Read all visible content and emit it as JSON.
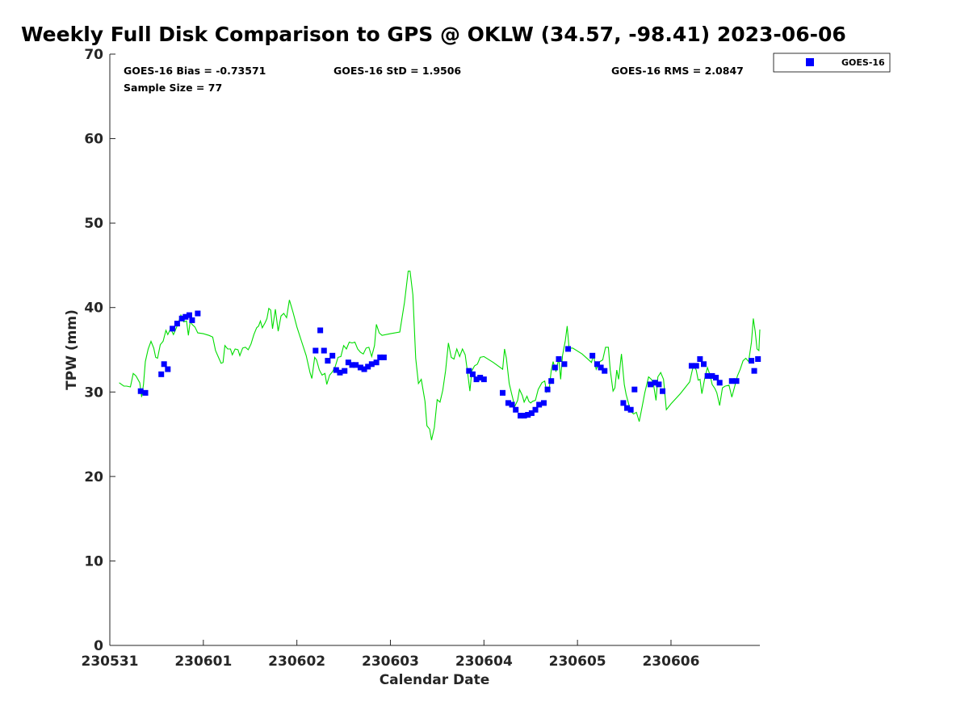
{
  "chart_data": {
    "type": "scatter",
    "title": "Weekly Full Disk Comparison to GPS @ OKLW (34.57, -98.41) 2023-06-06",
    "xlabel": "Calendar Date",
    "ylabel": "TPW (mm)",
    "xlim": [
      0,
      6.95
    ],
    "ylim": [
      0,
      70
    ],
    "x_tick_labels": [
      "230531",
      "230601",
      "230602",
      "230603",
      "230604",
      "230605",
      "230606"
    ],
    "x_tick_values": [
      0,
      1,
      2,
      3,
      4,
      5,
      6
    ],
    "y_ticks": [
      0,
      10,
      20,
      30,
      40,
      50,
      60,
      70
    ],
    "x_unit_note": "x values in days since 230531 00Z",
    "grid": false,
    "legend_placement": "outside top-right",
    "annotations": {
      "bias": "GOES-16 Bias = -0.73571",
      "std": "GOES-16 StD = 1.9506",
      "rms": "GOES-16 RMS = 2.0847",
      "sample": "Sample Size = 77"
    },
    "series": [
      {
        "name": "GOES-16",
        "kind": "scatter",
        "marker": "square",
        "color": "#0000ff",
        "points": [
          [
            0.33,
            30.1
          ],
          [
            0.38,
            29.9
          ],
          [
            0.55,
            32.1
          ],
          [
            0.58,
            33.3
          ],
          [
            0.62,
            32.7
          ],
          [
            0.67,
            37.5
          ],
          [
            0.72,
            38.1
          ],
          [
            0.77,
            38.7
          ],
          [
            0.81,
            38.9
          ],
          [
            0.85,
            39.1
          ],
          [
            0.88,
            38.5
          ],
          [
            0.94,
            39.3
          ],
          [
            2.2,
            34.9
          ],
          [
            2.25,
            37.3
          ],
          [
            2.29,
            34.9
          ],
          [
            2.33,
            33.7
          ],
          [
            2.38,
            34.3
          ],
          [
            2.42,
            32.6
          ],
          [
            2.46,
            32.3
          ],
          [
            2.51,
            32.5
          ],
          [
            2.55,
            33.5
          ],
          [
            2.59,
            33.2
          ],
          [
            2.63,
            33.2
          ],
          [
            2.68,
            32.9
          ],
          [
            2.72,
            32.7
          ],
          [
            2.76,
            33.0
          ],
          [
            2.8,
            33.3
          ],
          [
            2.85,
            33.5
          ],
          [
            2.89,
            34.1
          ],
          [
            2.93,
            34.1
          ],
          [
            3.84,
            32.5
          ],
          [
            3.88,
            32.1
          ],
          [
            3.92,
            31.5
          ],
          [
            3.96,
            31.7
          ],
          [
            4.0,
            31.5
          ],
          [
            4.2,
            29.9
          ],
          [
            4.26,
            28.7
          ],
          [
            4.3,
            28.5
          ],
          [
            4.34,
            27.9
          ],
          [
            4.39,
            27.2
          ],
          [
            4.43,
            27.2
          ],
          [
            4.47,
            27.3
          ],
          [
            4.51,
            27.5
          ],
          [
            4.55,
            27.9
          ],
          [
            4.59,
            28.5
          ],
          [
            4.64,
            28.7
          ],
          [
            4.68,
            30.3
          ],
          [
            4.72,
            31.3
          ],
          [
            4.76,
            32.9
          ],
          [
            4.8,
            33.9
          ],
          [
            4.86,
            33.3
          ],
          [
            4.9,
            35.1
          ],
          [
            5.16,
            34.3
          ],
          [
            5.21,
            33.3
          ],
          [
            5.25,
            32.9
          ],
          [
            5.29,
            32.5
          ],
          [
            5.49,
            28.7
          ],
          [
            5.53,
            28.1
          ],
          [
            5.57,
            27.9
          ],
          [
            5.61,
            30.3
          ],
          [
            5.78,
            30.9
          ],
          [
            5.83,
            31.1
          ],
          [
            5.87,
            30.9
          ],
          [
            5.91,
            30.1
          ],
          [
            6.22,
            33.1
          ],
          [
            6.27,
            33.1
          ],
          [
            6.31,
            33.9
          ],
          [
            6.35,
            33.3
          ],
          [
            6.39,
            31.9
          ],
          [
            6.44,
            31.9
          ],
          [
            6.48,
            31.7
          ],
          [
            6.52,
            31.1
          ],
          [
            6.65,
            31.3
          ],
          [
            6.7,
            31.3
          ],
          [
            6.86,
            33.7
          ],
          [
            6.89,
            32.5
          ],
          [
            6.93,
            33.9
          ]
        ]
      },
      {
        "name": "GPS",
        "kind": "line",
        "color": "#00dd00",
        "points": [
          [
            0.1,
            31.1
          ],
          [
            0.15,
            30.7
          ],
          [
            0.18,
            30.7
          ],
          [
            0.22,
            30.6
          ],
          [
            0.25,
            32.2
          ],
          [
            0.28,
            31.9
          ],
          [
            0.32,
            31.1
          ],
          [
            0.34,
            29.4
          ],
          [
            0.36,
            30.9
          ],
          [
            0.38,
            33.6
          ],
          [
            0.41,
            35.1
          ],
          [
            0.44,
            36.0
          ],
          [
            0.47,
            35.2
          ],
          [
            0.49,
            34.1
          ],
          [
            0.51,
            34.0
          ],
          [
            0.54,
            35.6
          ],
          [
            0.57,
            36.0
          ],
          [
            0.6,
            37.3
          ],
          [
            0.62,
            36.8
          ],
          [
            0.65,
            37.5
          ],
          [
            0.68,
            36.8
          ],
          [
            0.7,
            37.3
          ],
          [
            0.73,
            38.1
          ],
          [
            0.76,
            39.1
          ],
          [
            0.79,
            38.3
          ],
          [
            0.82,
            38.4
          ],
          [
            0.84,
            36.7
          ],
          [
            0.86,
            38.4
          ],
          [
            0.88,
            38.0
          ],
          [
            0.91,
            37.7
          ],
          [
            0.94,
            37.0
          ],
          [
            1.0,
            36.9
          ],
          [
            1.06,
            36.7
          ],
          [
            1.1,
            36.5
          ],
          [
            1.13,
            34.9
          ],
          [
            1.17,
            33.9
          ],
          [
            1.19,
            33.4
          ],
          [
            1.21,
            33.5
          ],
          [
            1.23,
            35.5
          ],
          [
            1.26,
            35.1
          ],
          [
            1.29,
            35.1
          ],
          [
            1.31,
            34.4
          ],
          [
            1.34,
            35.1
          ],
          [
            1.37,
            35.0
          ],
          [
            1.39,
            34.3
          ],
          [
            1.42,
            35.2
          ],
          [
            1.45,
            35.3
          ],
          [
            1.48,
            35.0
          ],
          [
            1.51,
            35.7
          ],
          [
            1.54,
            36.8
          ],
          [
            1.57,
            37.6
          ],
          [
            1.59,
            37.8
          ],
          [
            1.61,
            38.4
          ],
          [
            1.63,
            37.6
          ],
          [
            1.66,
            38.2
          ],
          [
            1.68,
            38.7
          ],
          [
            1.7,
            39.9
          ],
          [
            1.72,
            39.7
          ],
          [
            1.74,
            37.5
          ],
          [
            1.77,
            39.8
          ],
          [
            1.8,
            37.2
          ],
          [
            1.83,
            39.0
          ],
          [
            1.86,
            39.3
          ],
          [
            1.89,
            38.8
          ],
          [
            1.92,
            40.9
          ],
          [
            1.96,
            39.4
          ],
          [
            2.0,
            37.7
          ],
          [
            2.05,
            36.0
          ],
          [
            2.1,
            34.3
          ],
          [
            2.14,
            32.3
          ],
          [
            2.16,
            31.6
          ],
          [
            2.19,
            34.1
          ],
          [
            2.21,
            33.8
          ],
          [
            2.24,
            32.6
          ],
          [
            2.27,
            32.0
          ],
          [
            2.3,
            32.2
          ],
          [
            2.32,
            30.9
          ],
          [
            2.35,
            32.0
          ],
          [
            2.38,
            32.4
          ],
          [
            2.41,
            33.0
          ],
          [
            2.44,
            34.1
          ],
          [
            2.47,
            34.2
          ],
          [
            2.5,
            35.5
          ],
          [
            2.53,
            35.1
          ],
          [
            2.56,
            35.9
          ],
          [
            2.59,
            35.8
          ],
          [
            2.62,
            35.9
          ],
          [
            2.65,
            35.1
          ],
          [
            2.68,
            34.7
          ],
          [
            2.71,
            34.5
          ],
          [
            2.74,
            35.2
          ],
          [
            2.77,
            35.3
          ],
          [
            2.8,
            34.2
          ],
          [
            2.83,
            35.5
          ],
          [
            2.85,
            38.0
          ],
          [
            2.88,
            37.0
          ],
          [
            2.91,
            36.7
          ],
          [
            3.0,
            36.9
          ],
          [
            3.1,
            37.1
          ],
          [
            3.15,
            40.6
          ],
          [
            3.19,
            44.3
          ],
          [
            3.21,
            44.3
          ],
          [
            3.24,
            41.5
          ],
          [
            3.27,
            34.0
          ],
          [
            3.3,
            31.0
          ],
          [
            3.33,
            31.5
          ],
          [
            3.37,
            28.9
          ],
          [
            3.39,
            26.0
          ],
          [
            3.42,
            25.6
          ],
          [
            3.44,
            24.3
          ],
          [
            3.47,
            25.8
          ],
          [
            3.5,
            29.1
          ],
          [
            3.53,
            28.8
          ],
          [
            3.56,
            30.2
          ],
          [
            3.59,
            32.5
          ],
          [
            3.62,
            35.8
          ],
          [
            3.65,
            34.1
          ],
          [
            3.68,
            33.9
          ],
          [
            3.71,
            35.1
          ],
          [
            3.74,
            34.2
          ],
          [
            3.77,
            35.1
          ],
          [
            3.8,
            34.4
          ],
          [
            3.83,
            31.9
          ],
          [
            3.85,
            30.1
          ],
          [
            3.87,
            32.5
          ],
          [
            3.9,
            33.1
          ],
          [
            3.93,
            33.3
          ],
          [
            3.96,
            34.1
          ],
          [
            4.0,
            34.2
          ],
          [
            4.1,
            33.5
          ],
          [
            4.2,
            32.7
          ],
          [
            4.22,
            35.1
          ],
          [
            4.24,
            34.0
          ],
          [
            4.27,
            31.0
          ],
          [
            4.3,
            29.6
          ],
          [
            4.33,
            28.3
          ],
          [
            4.36,
            29.0
          ],
          [
            4.38,
            30.3
          ],
          [
            4.41,
            29.6
          ],
          [
            4.43,
            28.8
          ],
          [
            4.46,
            29.5
          ],
          [
            4.48,
            28.9
          ],
          [
            4.5,
            28.7
          ],
          [
            4.52,
            28.9
          ],
          [
            4.55,
            29.0
          ],
          [
            4.58,
            30.3
          ],
          [
            4.62,
            31.1
          ],
          [
            4.65,
            31.3
          ],
          [
            4.67,
            30.0
          ],
          [
            4.7,
            30.6
          ],
          [
            4.72,
            32.6
          ],
          [
            4.74,
            33.6
          ],
          [
            4.77,
            32.4
          ],
          [
            4.8,
            34.0
          ],
          [
            4.82,
            31.5
          ],
          [
            4.84,
            34.3
          ],
          [
            4.87,
            36.1
          ],
          [
            4.89,
            37.8
          ],
          [
            4.91,
            35.2
          ],
          [
            4.95,
            35.2
          ],
          [
            5.05,
            34.5
          ],
          [
            5.15,
            33.5
          ],
          [
            5.17,
            34.4
          ],
          [
            5.2,
            32.7
          ],
          [
            5.24,
            33.6
          ],
          [
            5.27,
            33.8
          ],
          [
            5.3,
            35.3
          ],
          [
            5.33,
            35.3
          ],
          [
            5.35,
            32.6
          ],
          [
            5.38,
            30.1
          ],
          [
            5.4,
            30.5
          ],
          [
            5.42,
            32.6
          ],
          [
            5.44,
            31.5
          ],
          [
            5.47,
            34.5
          ],
          [
            5.5,
            30.9
          ],
          [
            5.52,
            29.7
          ],
          [
            5.55,
            28.5
          ],
          [
            5.57,
            27.7
          ],
          [
            5.6,
            27.4
          ],
          [
            5.63,
            27.6
          ],
          [
            5.66,
            26.5
          ],
          [
            5.69,
            28.2
          ],
          [
            5.72,
            29.9
          ],
          [
            5.76,
            31.8
          ],
          [
            5.79,
            31.5
          ],
          [
            5.81,
            31.1
          ],
          [
            5.84,
            29.0
          ],
          [
            5.86,
            31.8
          ],
          [
            5.89,
            32.3
          ],
          [
            5.92,
            31.5
          ],
          [
            5.95,
            27.9
          ],
          [
            6.0,
            28.6
          ],
          [
            6.1,
            29.8
          ],
          [
            6.2,
            31.2
          ],
          [
            6.24,
            33.2
          ],
          [
            6.27,
            32.6
          ],
          [
            6.29,
            31.4
          ],
          [
            6.31,
            31.5
          ],
          [
            6.33,
            29.8
          ],
          [
            6.36,
            31.6
          ],
          [
            6.39,
            32.9
          ],
          [
            6.42,
            31.9
          ],
          [
            6.44,
            30.9
          ],
          [
            6.47,
            30.4
          ],
          [
            6.49,
            29.9
          ],
          [
            6.52,
            28.4
          ],
          [
            6.55,
            30.5
          ],
          [
            6.58,
            30.7
          ],
          [
            6.62,
            30.8
          ],
          [
            6.65,
            29.4
          ],
          [
            6.68,
            30.6
          ],
          [
            6.71,
            31.9
          ],
          [
            6.74,
            32.7
          ],
          [
            6.77,
            33.7
          ],
          [
            6.8,
            34.0
          ],
          [
            6.83,
            33.6
          ],
          [
            6.86,
            35.9
          ],
          [
            6.88,
            38.7
          ],
          [
            6.9,
            37.2
          ],
          [
            6.92,
            35.1
          ],
          [
            6.94,
            34.9
          ],
          [
            6.95,
            37.4
          ]
        ]
      }
    ]
  }
}
